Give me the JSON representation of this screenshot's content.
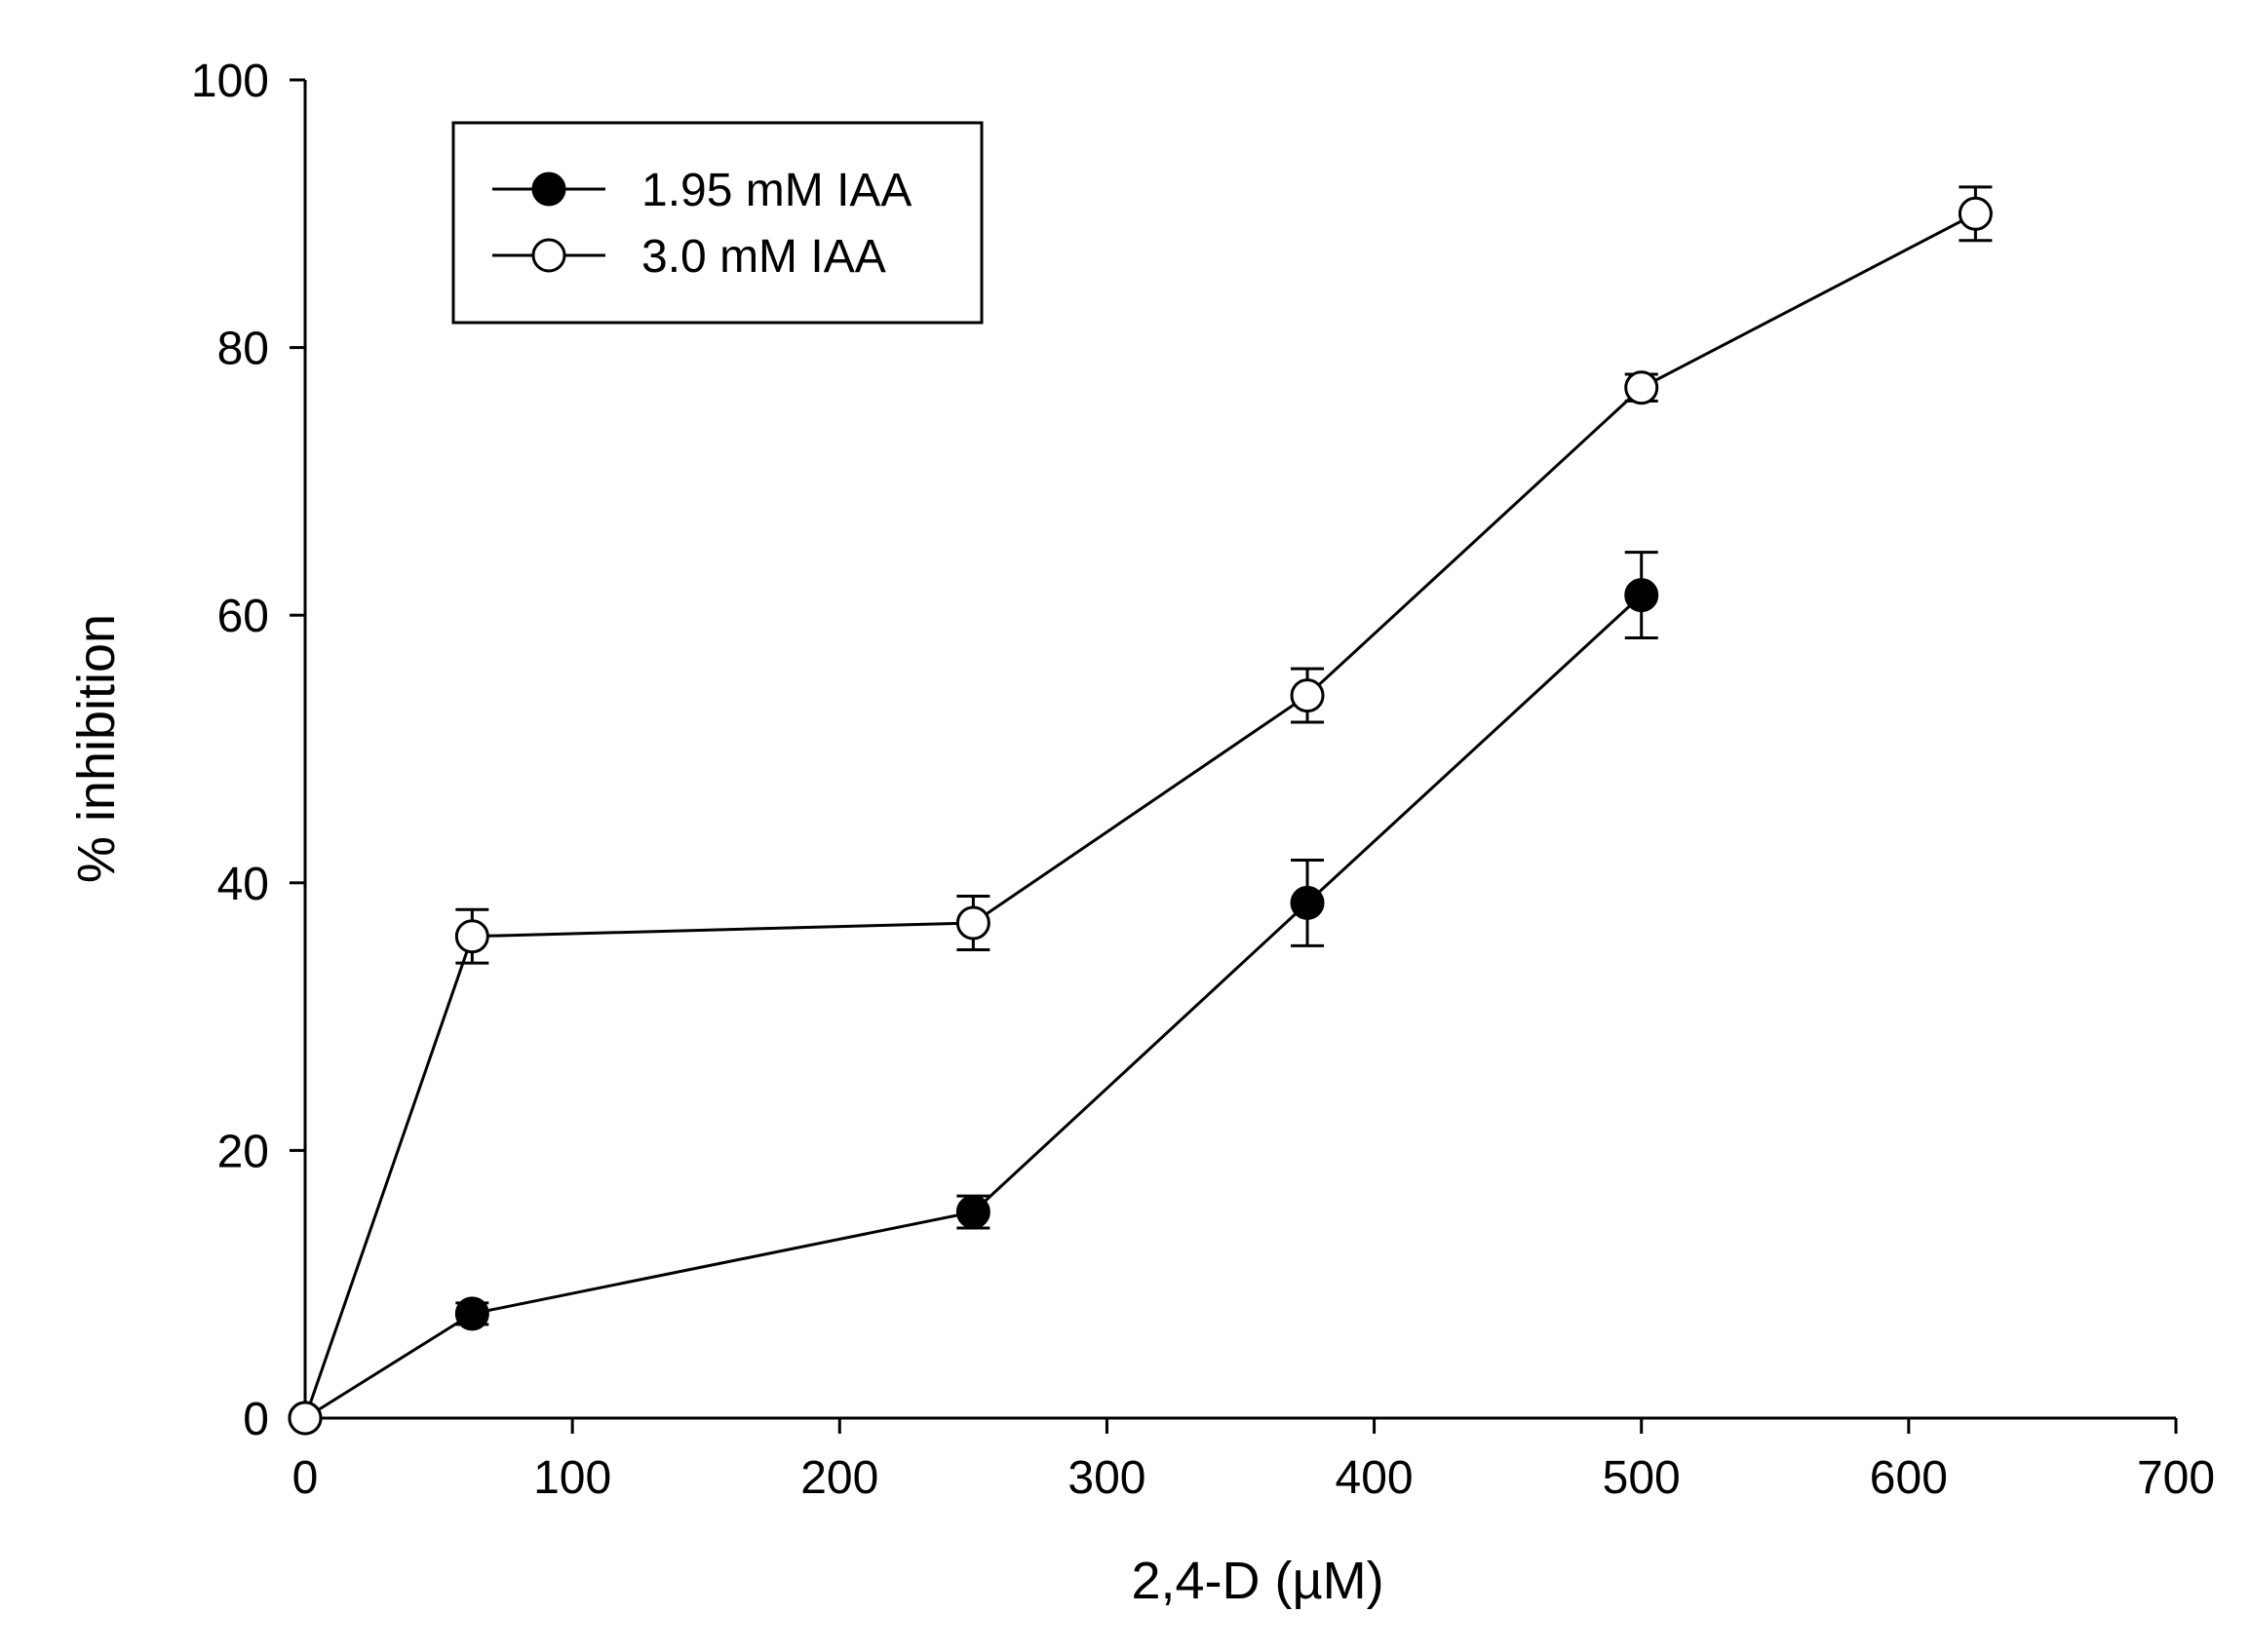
{
  "chart_data": {
    "type": "line",
    "title": "",
    "xlabel": "2,4-D (µM)",
    "ylabel": "% inhibition",
    "xlim": [
      0,
      700
    ],
    "ylim": [
      0,
      100
    ],
    "xticks": [
      0,
      100,
      200,
      300,
      400,
      500,
      600,
      700
    ],
    "yticks": [
      0,
      20,
      40,
      60,
      80,
      100
    ],
    "grid": false,
    "legend_position": "top-left",
    "series": [
      {
        "name": "1.95 mM IAA",
        "marker": "filled-circle",
        "x": [
          0,
          62.5,
          250,
          375,
          500
        ],
        "y": [
          0,
          7.8,
          15.4,
          38.5,
          61.5
        ],
        "err": [
          0,
          0.8,
          1.2,
          3.2,
          3.2
        ]
      },
      {
        "name": "3.0 mM IAA",
        "marker": "open-circle",
        "x": [
          0,
          62.5,
          250,
          375,
          500,
          625
        ],
        "y": [
          0,
          36,
          37,
          54,
          77,
          90
        ],
        "err": [
          0,
          2,
          2,
          2,
          1,
          2
        ]
      }
    ]
  }
}
